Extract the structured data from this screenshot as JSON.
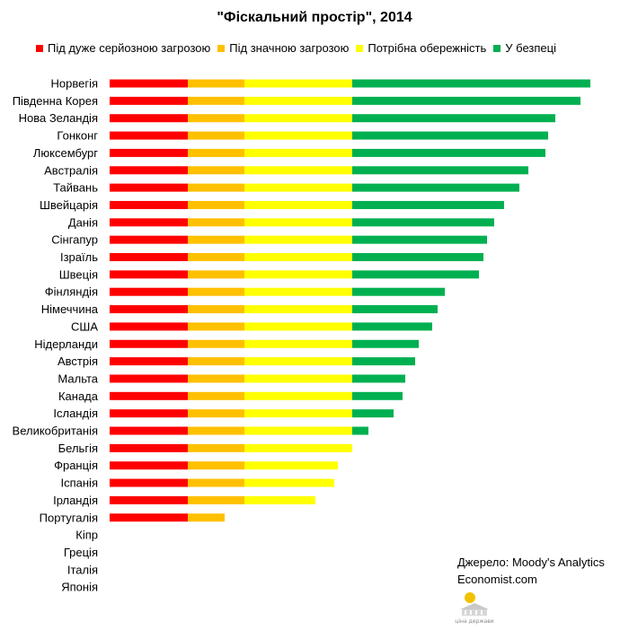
{
  "title": "\"Фіскальний простір\", 2014",
  "legend": [
    {
      "label": "Під дуже серйозною загрозою",
      "color": "#ff0000"
    },
    {
      "label": "Під значною загрозою",
      "color": "#ffc000"
    },
    {
      "label": "Потрібна обережність",
      "color": "#ffff00"
    },
    {
      "label": "У безпеці",
      "color": "#00b050"
    }
  ],
  "source": {
    "line1": "Джерело: Moody's Analytics",
    "line2": "Economist.com"
  },
  "logo": {
    "text": "ціна держави"
  },
  "chart_data": {
    "type": "bar",
    "orientation": "horizontal",
    "stacked": true,
    "title": "\"Фіскальний простір\", 2014",
    "categories": [
      "Норвегія",
      "Південна Корея",
      "Нова Зеландія",
      "Гонконг",
      "Люксембург",
      "Австралія",
      "Тайвань",
      "Швейцарія",
      "Данія",
      "Сінгапур",
      "Ізраїль",
      "Швеція",
      "Фінляндія",
      "Німеччина",
      "США",
      "Нідерланди",
      "Австрія",
      "Мальта",
      "Канада",
      "Ісландія",
      "Великобританія",
      "Бельгія",
      "Франція",
      "Іспанія",
      "Ірландія",
      "Португалія",
      "Кіпр",
      "Греція",
      "Італія",
      "Японія"
    ],
    "series": [
      {
        "name": "Під дуже серйозною загрозою",
        "color": "#ff0000",
        "values": [
          87,
          87,
          87,
          87,
          87,
          87,
          87,
          87,
          87,
          87,
          87,
          87,
          87,
          87,
          87,
          87,
          87,
          87,
          87,
          87,
          87,
          87,
          87,
          87,
          87,
          87,
          0,
          0,
          0,
          0
        ]
      },
      {
        "name": "Під значною загрозою",
        "color": "#ffc000",
        "values": [
          63,
          63,
          63,
          63,
          63,
          63,
          63,
          63,
          63,
          63,
          63,
          63,
          63,
          63,
          63,
          63,
          63,
          63,
          63,
          63,
          63,
          63,
          63,
          63,
          63,
          41,
          0,
          0,
          0,
          0
        ]
      },
      {
        "name": "Потрібна обережність",
        "color": "#ffff00",
        "values": [
          120,
          120,
          120,
          120,
          120,
          120,
          120,
          120,
          120,
          120,
          120,
          120,
          120,
          120,
          120,
          120,
          120,
          120,
          120,
          120,
          120,
          120,
          104,
          100,
          79,
          0,
          0,
          0,
          0,
          0
        ]
      },
      {
        "name": "У безпеці",
        "color": "#00b050",
        "values": [
          265,
          254,
          226,
          218,
          215,
          196,
          186,
          169,
          158,
          150,
          146,
          141,
          103,
          95,
          89,
          74,
          70,
          59,
          56,
          46,
          18,
          0,
          0,
          0,
          0,
          0,
          0,
          0,
          0,
          0
        ]
      }
    ],
    "legend_position": "top",
    "grid": false
  }
}
